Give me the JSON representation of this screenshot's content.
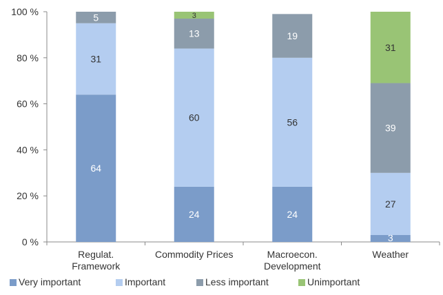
{
  "chart_data": {
    "type": "bar",
    "stacked": true,
    "percent_stacked": true,
    "categories": [
      [
        "Regulat.",
        "Framework"
      ],
      [
        "Commodity Prices"
      ],
      [
        "Macroecon.",
        "Development"
      ],
      [
        "Weather"
      ]
    ],
    "series": [
      {
        "name": "Very important",
        "color": "#7b9cc9",
        "values": [
          64,
          24,
          24,
          3
        ],
        "labels": [
          "64",
          "24",
          "24",
          "3"
        ]
      },
      {
        "name": "Important",
        "color": "#b4cdf0",
        "values": [
          31,
          60,
          56,
          27
        ],
        "labels": [
          "31",
          "60",
          "56",
          "27"
        ]
      },
      {
        "name": "Less important",
        "color": "#8c9cab",
        "values": [
          5,
          13,
          19,
          39
        ],
        "labels": [
          "5",
          "13",
          "19",
          "39"
        ]
      },
      {
        "name": "Unimportant",
        "color": "#99c475",
        "values": [
          0,
          3,
          0,
          31
        ],
        "labels": [
          "",
          "3",
          "",
          "31"
        ]
      }
    ],
    "y_ticks": [
      "0 %",
      "20 %",
      "40 %",
      "60 %",
      "80 %",
      "100 %"
    ],
    "ylim": [
      0,
      100
    ],
    "grid": false,
    "legend_position": "bottom-left",
    "title": "",
    "xlabel": "",
    "ylabel": ""
  }
}
